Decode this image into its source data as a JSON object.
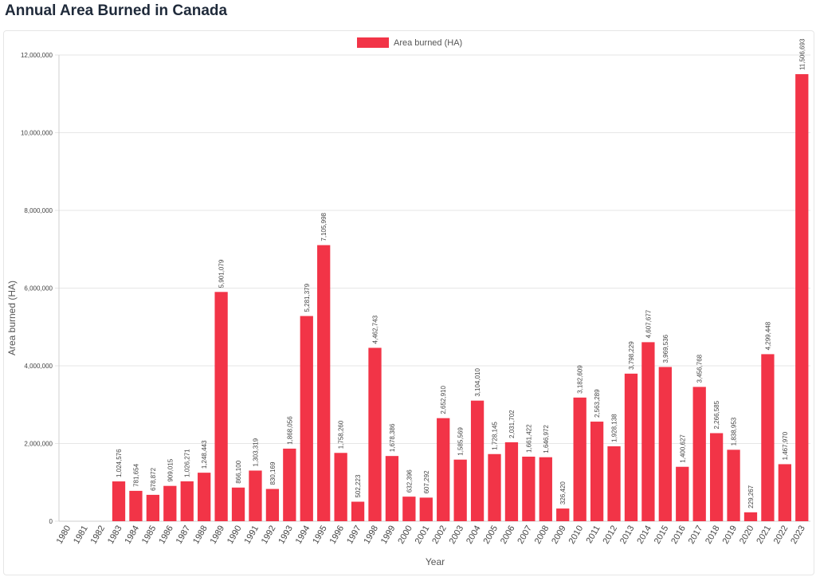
{
  "page": {
    "title": "Annual Area Burned in Canada"
  },
  "colors": {
    "bar": "#f23447",
    "grid": "#e6e6e6",
    "axis": "#cfcfcf"
  },
  "chart_data": {
    "type": "bar",
    "title": "",
    "xlabel": "Year",
    "ylabel": "Area burned (HA)",
    "ylim": [
      0,
      12000000
    ],
    "yticks": [
      0,
      2000000,
      4000000,
      6000000,
      8000000,
      10000000,
      12000000
    ],
    "ytick_labels": [
      "0",
      "2,000,000",
      "4,000,000",
      "6,000,000",
      "8,000,000",
      "10,000,000",
      "12,000,000"
    ],
    "grid": true,
    "legend": "top-center",
    "categories": [
      "1980",
      "1981",
      "1982",
      "1983",
      "1984",
      "1985",
      "1986",
      "1987",
      "1988",
      "1989",
      "1990",
      "1991",
      "1992",
      "1993",
      "1994",
      "1995",
      "1996",
      "1997",
      "1998",
      "1999",
      "2000",
      "2001",
      "2002",
      "2003",
      "2004",
      "2005",
      "2006",
      "2007",
      "2008",
      "2009",
      "2010",
      "2011",
      "2012",
      "2013",
      "2014",
      "2015",
      "2016",
      "2017",
      "2018",
      "2019",
      "2020",
      "2021",
      "2022",
      "2023"
    ],
    "series": [
      {
        "name": "Area burned (HA)",
        "values": [
          null,
          null,
          null,
          1024576,
          781654,
          678872,
          909015,
          1026271,
          1248443,
          5901079,
          866100,
          1303319,
          830169,
          1868056,
          5281379,
          7105998,
          1758260,
          502223,
          4462743,
          1678386,
          632396,
          607292,
          2652910,
          1585569,
          3104010,
          1728145,
          2031702,
          1661422,
          1646972,
          326420,
          3182609,
          2563289,
          1928138,
          3798229,
          4607677,
          3969536,
          1400627,
          3456768,
          2266585,
          1838953,
          229267,
          4299448,
          1467970,
          11506693
        ],
        "labels": [
          "",
          "",
          "",
          "1,024,576",
          "781,654",
          "678,872",
          "909,015",
          "1,026,271",
          "1,248,443",
          "5,901,079",
          "866,100",
          "1,303,319",
          "830,169",
          "1,868,056",
          "5,281,379",
          "7,105,998",
          "1,758,260",
          "502,223",
          "4,462,743",
          "1,678,386",
          "632,396",
          "607,292",
          "2,652,910",
          "1,585,569",
          "3,104,010",
          "1,728,145",
          "2,031,702",
          "1,661,422",
          "1,646,972",
          "326,420",
          "3,182,609",
          "2,563,289",
          "1,928,138",
          "3,798,229",
          "4,607,677",
          "3,969,536",
          "1,400,627",
          "3,456,768",
          "2,266,585",
          "1,838,953",
          "229,267",
          "4,299,448",
          "1,467,970",
          "11,506,693"
        ]
      }
    ]
  }
}
